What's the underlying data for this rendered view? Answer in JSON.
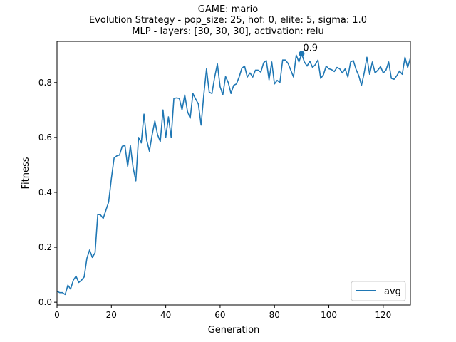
{
  "chart_data": {
    "type": "line",
    "title_lines": [
      "GAME: mario",
      "Evolution Strategy - pop_size: 25, hof: 0, elite: 5, sigma: 1.0",
      "MLP - layers: [30, 30, 30], activation: relu"
    ],
    "xlabel": "Generation",
    "ylabel": "Fitness",
    "xlim": [
      0,
      130
    ],
    "ylim": [
      -0.01,
      0.95
    ],
    "xticks": [
      0,
      20,
      40,
      60,
      80,
      100,
      120
    ],
    "yticks": [
      0.0,
      0.2,
      0.4,
      0.6,
      0.8
    ],
    "xtick_labels": [
      "0",
      "20",
      "40",
      "60",
      "80",
      "100",
      "120"
    ],
    "ytick_labels": [
      "0.0",
      "0.2",
      "0.4",
      "0.6",
      "0.8"
    ],
    "grid": false,
    "legend_position": "lower-right",
    "series": [
      {
        "name": "avg",
        "color": "#1f77b4",
        "values": [
          0.04,
          0.035,
          0.035,
          0.028,
          0.062,
          0.048,
          0.08,
          0.095,
          0.072,
          0.08,
          0.092,
          0.16,
          0.19,
          0.163,
          0.18,
          0.32,
          0.318,
          0.305,
          0.335,
          0.365,
          0.45,
          0.525,
          0.533,
          0.536,
          0.568,
          0.57,
          0.495,
          0.57,
          0.49,
          0.442,
          0.6,
          0.58,
          0.685,
          0.59,
          0.55,
          0.61,
          0.66,
          0.61,
          0.585,
          0.7,
          0.6,
          0.675,
          0.6,
          0.742,
          0.744,
          0.742,
          0.7,
          0.755,
          0.695,
          0.67,
          0.76,
          0.74,
          0.722,
          0.645,
          0.755,
          0.85,
          0.765,
          0.76,
          0.82,
          0.868,
          0.785,
          0.755,
          0.822,
          0.8,
          0.76,
          0.79,
          0.795,
          0.82,
          0.852,
          0.86,
          0.82,
          0.835,
          0.82,
          0.845,
          0.845,
          0.838,
          0.872,
          0.88,
          0.81,
          0.875,
          0.795,
          0.808,
          0.8,
          0.882,
          0.882,
          0.87,
          0.845,
          0.82,
          0.9,
          0.875,
          0.905,
          0.875,
          0.86,
          0.878,
          0.855,
          0.865,
          0.882,
          0.815,
          0.828,
          0.86,
          0.85,
          0.847,
          0.84,
          0.855,
          0.85,
          0.835,
          0.85,
          0.82,
          0.875,
          0.88,
          0.848,
          0.825,
          0.79,
          0.835,
          0.892,
          0.83,
          0.875,
          0.835,
          0.845,
          0.858,
          0.835,
          0.845,
          0.875,
          0.815,
          0.812,
          0.825,
          0.842,
          0.83,
          0.892,
          0.855,
          0.89,
          0.87
        ]
      }
    ],
    "annotations": [
      {
        "x": 90,
        "y": 0.905,
        "text": "0.9"
      }
    ]
  }
}
